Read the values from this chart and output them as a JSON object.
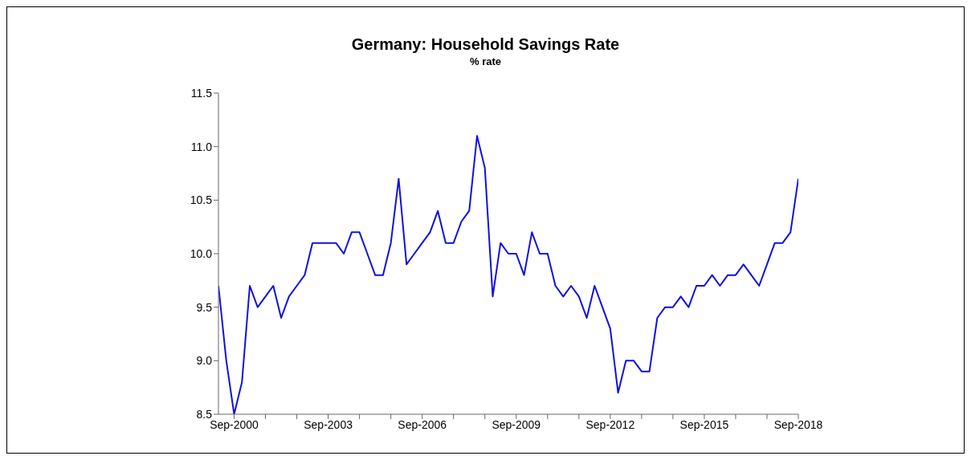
{
  "chart_data": {
    "type": "line",
    "title": "Germany:  Household Savings Rate",
    "subtitle": "% rate",
    "x": [
      "2000-03",
      "2000-06",
      "2000-09",
      "2000-12",
      "2001-03",
      "2001-06",
      "2001-09",
      "2001-12",
      "2002-03",
      "2002-06",
      "2002-09",
      "2002-12",
      "2003-03",
      "2003-06",
      "2003-09",
      "2003-12",
      "2004-03",
      "2004-06",
      "2004-09",
      "2004-12",
      "2005-03",
      "2005-06",
      "2005-09",
      "2005-12",
      "2006-03",
      "2006-06",
      "2006-09",
      "2006-12",
      "2007-03",
      "2007-06",
      "2007-09",
      "2007-12",
      "2008-03",
      "2008-06",
      "2008-09",
      "2008-12",
      "2009-03",
      "2009-06",
      "2009-09",
      "2009-12",
      "2010-03",
      "2010-06",
      "2010-09",
      "2010-12",
      "2011-03",
      "2011-06",
      "2011-09",
      "2011-12",
      "2012-03",
      "2012-06",
      "2012-09",
      "2012-12",
      "2013-03",
      "2013-06",
      "2013-09",
      "2013-12",
      "2014-03",
      "2014-06",
      "2014-09",
      "2014-12",
      "2015-03",
      "2015-06",
      "2015-09",
      "2015-12",
      "2016-03",
      "2016-06",
      "2016-09",
      "2016-12",
      "2017-03",
      "2017-06",
      "2017-09",
      "2017-12",
      "2018-03",
      "2018-06",
      "2018-09"
    ],
    "series": [
      {
        "color": "#1010e0",
        "values": [
          9.7,
          9.0,
          8.5,
          8.8,
          9.7,
          9.5,
          9.6,
          9.7,
          9.4,
          9.6,
          9.7,
          9.8,
          10.1,
          10.1,
          10.1,
          10.1,
          10.0,
          10.2,
          10.2,
          10.0,
          9.8,
          9.8,
          10.1,
          10.7,
          9.9,
          10.0,
          10.1,
          10.2,
          10.4,
          10.1,
          10.1,
          10.3,
          10.4,
          11.1,
          10.8,
          9.6,
          10.1,
          10.0,
          10.0,
          9.8,
          10.2,
          10.0,
          10.0,
          9.7,
          9.6,
          9.7,
          9.6,
          9.4,
          9.7,
          9.5,
          9.3,
          8.7,
          9.0,
          9.0,
          8.9,
          8.9,
          9.4,
          9.5,
          9.5,
          9.6,
          9.5,
          9.7,
          9.7,
          9.8,
          9.7,
          9.8,
          9.8,
          9.9,
          9.8,
          9.7,
          9.9,
          10.1,
          10.1,
          10.2,
          10.7
        ]
      }
    ],
    "xlim": [
      "2000-03",
      "2018-09"
    ],
    "xticks": [
      {
        "value": "2000-09",
        "label": "Sep-2000"
      },
      {
        "value": "2001-09",
        "label": null
      },
      {
        "value": "2002-09",
        "label": null
      },
      {
        "value": "2003-09",
        "label": "Sep-2003"
      },
      {
        "value": "2004-09",
        "label": null
      },
      {
        "value": "2005-09",
        "label": null
      },
      {
        "value": "2006-09",
        "label": "Sep-2006"
      },
      {
        "value": "2007-09",
        "label": null
      },
      {
        "value": "2008-09",
        "label": null
      },
      {
        "value": "2009-09",
        "label": "Sep-2009"
      },
      {
        "value": "2010-09",
        "label": null
      },
      {
        "value": "2011-09",
        "label": null
      },
      {
        "value": "2012-09",
        "label": "Sep-2012"
      },
      {
        "value": "2013-09",
        "label": null
      },
      {
        "value": "2014-09",
        "label": null
      },
      {
        "value": "2015-09",
        "label": "Sep-2015"
      },
      {
        "value": "2016-09",
        "label": null
      },
      {
        "value": "2017-09",
        "label": null
      },
      {
        "value": "2018-09",
        "label": "Sep-2018"
      }
    ],
    "ylim": [
      8.5,
      11.5
    ],
    "yticks": [
      {
        "value": 8.5,
        "label": "8.5"
      },
      {
        "value": 9,
        "label": "9.0"
      },
      {
        "value": 9.5,
        "label": "9.5"
      },
      {
        "value": 10,
        "label": "10.0"
      },
      {
        "value": 10.5,
        "label": "10.5"
      },
      {
        "value": 11,
        "label": "11.0"
      },
      {
        "value": 11.5,
        "label": "11.5"
      }
    ],
    "grid": false,
    "legend": false,
    "marker": "none",
    "line_style": "solid"
  }
}
